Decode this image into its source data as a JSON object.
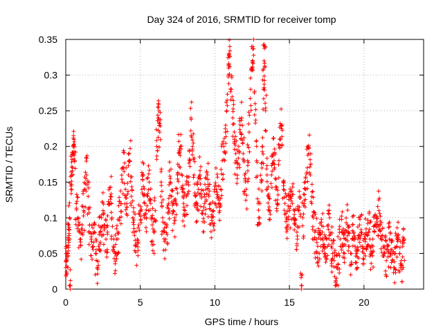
{
  "chart_data": {
    "type": "scatter",
    "title": "Day 324 of 2016, SRMTID for receiver tomp",
    "xlabel": "GPS time / hours",
    "ylabel": "SRMTID / TECUs",
    "xlim": [
      0,
      24
    ],
    "ylim": [
      0,
      0.35
    ],
    "xticks": [
      0,
      5,
      10,
      15,
      20
    ],
    "xtick_labels": [
      "0",
      "5",
      "10",
      "15",
      "20"
    ],
    "yticks": [
      0,
      0.05,
      0.1,
      0.15,
      0.2,
      0.25,
      0.3,
      0.35
    ],
    "ytick_labels": [
      "0",
      "0.05",
      "0.1",
      "0.15",
      "0.2",
      "0.25",
      "0.3",
      "0.35"
    ],
    "grid": true,
    "marker": "+",
    "color": "#ff0000",
    "series": [
      {
        "name": "SRMTID",
        "points": [
          [
            0.0,
            0.03
          ],
          [
            0.05,
            0.04
          ],
          [
            0.1,
            0.05
          ],
          [
            0.15,
            0.07
          ],
          [
            0.2,
            0.09
          ],
          [
            0.25,
            0.1
          ],
          [
            0.3,
            0.0
          ],
          [
            0.35,
            0.14
          ],
          [
            0.4,
            0.16
          ],
          [
            0.45,
            0.17
          ],
          [
            0.5,
            0.19
          ],
          [
            0.55,
            0.21
          ],
          [
            0.6,
            0.18
          ],
          [
            0.7,
            0.12
          ],
          [
            0.8,
            0.1
          ],
          [
            0.9,
            0.08
          ],
          [
            1.0,
            0.07
          ],
          [
            1.1,
            0.09
          ],
          [
            1.2,
            0.11
          ],
          [
            1.3,
            0.14
          ],
          [
            1.4,
            0.16
          ],
          [
            1.5,
            0.13
          ],
          [
            1.6,
            0.09
          ],
          [
            1.7,
            0.07
          ],
          [
            1.8,
            0.06
          ],
          [
            1.9,
            0.08
          ],
          [
            2.0,
            0.05
          ],
          [
            2.1,
            0.03
          ],
          [
            2.2,
            0.06
          ],
          [
            2.3,
            0.08
          ],
          [
            2.4,
            0.1
          ],
          [
            2.5,
            0.11
          ],
          [
            2.6,
            0.09
          ],
          [
            2.7,
            0.07
          ],
          [
            2.8,
            0.08
          ],
          [
            2.9,
            0.12
          ],
          [
            3.0,
            0.13
          ],
          [
            3.1,
            0.1
          ],
          [
            3.2,
            0.06
          ],
          [
            3.3,
            0.05
          ],
          [
            3.4,
            0.07
          ],
          [
            3.5,
            0.08
          ],
          [
            3.6,
            0.1
          ],
          [
            3.7,
            0.12
          ],
          [
            3.8,
            0.15
          ],
          [
            3.9,
            0.17
          ],
          [
            4.0,
            0.14
          ],
          [
            4.1,
            0.12
          ],
          [
            4.2,
            0.16
          ],
          [
            4.3,
            0.18
          ],
          [
            4.4,
            0.13
          ],
          [
            4.5,
            0.1
          ],
          [
            4.6,
            0.08
          ],
          [
            4.7,
            0.06
          ],
          [
            4.8,
            0.07
          ],
          [
            4.9,
            0.09
          ],
          [
            5.0,
            0.11
          ],
          [
            5.1,
            0.14
          ],
          [
            5.2,
            0.16
          ],
          [
            5.3,
            0.12
          ],
          [
            5.4,
            0.1
          ],
          [
            5.5,
            0.13
          ],
          [
            5.6,
            0.15
          ],
          [
            5.7,
            0.12
          ],
          [
            5.8,
            0.09
          ],
          [
            5.9,
            0.08
          ],
          [
            6.0,
            0.11
          ],
          [
            6.1,
            0.2
          ],
          [
            6.2,
            0.24
          ],
          [
            6.25,
            0.25
          ],
          [
            6.3,
            0.22
          ],
          [
            6.4,
            0.15
          ],
          [
            6.5,
            0.1
          ],
          [
            6.6,
            0.08
          ],
          [
            6.7,
            0.07
          ],
          [
            6.8,
            0.09
          ],
          [
            6.9,
            0.12
          ],
          [
            7.0,
            0.15
          ],
          [
            7.1,
            0.13
          ],
          [
            7.2,
            0.11
          ],
          [
            7.3,
            0.1
          ],
          [
            7.4,
            0.12
          ],
          [
            7.5,
            0.16
          ],
          [
            7.6,
            0.19
          ],
          [
            7.7,
            0.2
          ],
          [
            7.8,
            0.14
          ],
          [
            7.9,
            0.12
          ],
          [
            8.0,
            0.11
          ],
          [
            8.1,
            0.13
          ],
          [
            8.2,
            0.15
          ],
          [
            8.3,
            0.18
          ],
          [
            8.4,
            0.24
          ],
          [
            8.5,
            0.2
          ],
          [
            8.6,
            0.16
          ],
          [
            8.7,
            0.13
          ],
          [
            8.8,
            0.12
          ],
          [
            8.9,
            0.14
          ],
          [
            9.0,
            0.16
          ],
          [
            9.1,
            0.13
          ],
          [
            9.2,
            0.11
          ],
          [
            9.3,
            0.12
          ],
          [
            9.4,
            0.14
          ],
          [
            9.5,
            0.16
          ],
          [
            9.6,
            0.13
          ],
          [
            9.7,
            0.12
          ],
          [
            9.8,
            0.1
          ],
          [
            9.9,
            0.11
          ],
          [
            10.0,
            0.12
          ],
          [
            10.1,
            0.14
          ],
          [
            10.2,
            0.13
          ],
          [
            10.3,
            0.12
          ],
          [
            10.4,
            0.14
          ],
          [
            10.5,
            0.18
          ],
          [
            10.6,
            0.2
          ],
          [
            10.7,
            0.22
          ],
          [
            10.8,
            0.25
          ],
          [
            10.9,
            0.3
          ],
          [
            10.95,
            0.33
          ],
          [
            11.0,
            0.34
          ],
          [
            11.1,
            0.28
          ],
          [
            11.2,
            0.24
          ],
          [
            11.3,
            0.21
          ],
          [
            11.4,
            0.19
          ],
          [
            11.5,
            0.17
          ],
          [
            11.6,
            0.2
          ],
          [
            11.7,
            0.22
          ],
          [
            11.8,
            0.24
          ],
          [
            11.9,
            0.19
          ],
          [
            12.0,
            0.16
          ],
          [
            12.1,
            0.14
          ],
          [
            12.2,
            0.18
          ],
          [
            12.3,
            0.22
          ],
          [
            12.4,
            0.28
          ],
          [
            12.5,
            0.31
          ],
          [
            12.55,
            0.34
          ],
          [
            12.6,
            0.35
          ],
          [
            12.7,
            0.26
          ],
          [
            12.8,
            0.18
          ],
          [
            12.9,
            0.12
          ],
          [
            13.0,
            0.1
          ],
          [
            13.1,
            0.15
          ],
          [
            13.2,
            0.2
          ],
          [
            13.25,
            0.28
          ],
          [
            13.3,
            0.32
          ],
          [
            13.35,
            0.34
          ],
          [
            13.4,
            0.25
          ],
          [
            13.5,
            0.16
          ],
          [
            13.6,
            0.13
          ],
          [
            13.7,
            0.11
          ],
          [
            13.8,
            0.16
          ],
          [
            13.9,
            0.19
          ],
          [
            14.0,
            0.17
          ],
          [
            14.1,
            0.14
          ],
          [
            14.2,
            0.12
          ],
          [
            14.3,
            0.18
          ],
          [
            14.4,
            0.21
          ],
          [
            14.5,
            0.23
          ],
          [
            14.6,
            0.15
          ],
          [
            14.7,
            0.12
          ],
          [
            14.8,
            0.1
          ],
          [
            14.9,
            0.09
          ],
          [
            15.0,
            0.11
          ],
          [
            15.1,
            0.13
          ],
          [
            15.2,
            0.12
          ],
          [
            15.3,
            0.1
          ],
          [
            15.4,
            0.09
          ],
          [
            15.5,
            0.08
          ],
          [
            15.6,
            0.11
          ],
          [
            15.7,
            0.13
          ],
          [
            15.8,
            0.0
          ],
          [
            15.9,
            0.1
          ],
          [
            16.0,
            0.12
          ],
          [
            16.1,
            0.14
          ],
          [
            16.2,
            0.17
          ],
          [
            16.3,
            0.19
          ],
          [
            16.4,
            0.16
          ],
          [
            16.5,
            0.12
          ],
          [
            16.6,
            0.1
          ],
          [
            16.7,
            0.08
          ],
          [
            16.8,
            0.07
          ],
          [
            16.9,
            0.06
          ],
          [
            17.0,
            0.05
          ],
          [
            17.1,
            0.07
          ],
          [
            17.2,
            0.08
          ],
          [
            17.3,
            0.06
          ],
          [
            17.4,
            0.05
          ],
          [
            17.5,
            0.07
          ],
          [
            17.6,
            0.09
          ],
          [
            17.7,
            0.1
          ],
          [
            17.8,
            0.06
          ],
          [
            17.9,
            0.05
          ],
          [
            18.0,
            0.04
          ],
          [
            18.1,
            0.01
          ],
          [
            18.2,
            0.03
          ],
          [
            18.3,
            0.05
          ],
          [
            18.4,
            0.07
          ],
          [
            18.5,
            0.08
          ],
          [
            18.6,
            0.06
          ],
          [
            18.7,
            0.05
          ],
          [
            18.8,
            0.07
          ],
          [
            18.9,
            0.09
          ],
          [
            19.0,
            0.06
          ],
          [
            19.1,
            0.05
          ],
          [
            19.2,
            0.07
          ],
          [
            19.3,
            0.08
          ],
          [
            19.4,
            0.06
          ],
          [
            19.5,
            0.05
          ],
          [
            19.6,
            0.07
          ],
          [
            19.7,
            0.09
          ],
          [
            19.8,
            0.08
          ],
          [
            19.9,
            0.06
          ],
          [
            20.0,
            0.05
          ],
          [
            20.1,
            0.07
          ],
          [
            20.2,
            0.06
          ],
          [
            20.3,
            0.08
          ],
          [
            20.4,
            0.07
          ],
          [
            20.5,
            0.05
          ],
          [
            20.6,
            0.06
          ],
          [
            20.7,
            0.08
          ],
          [
            20.8,
            0.09
          ],
          [
            20.9,
            0.1
          ],
          [
            21.0,
            0.11
          ],
          [
            21.1,
            0.09
          ],
          [
            21.2,
            0.07
          ],
          [
            21.3,
            0.06
          ],
          [
            21.4,
            0.05
          ],
          [
            21.5,
            0.04
          ],
          [
            21.6,
            0.06
          ],
          [
            21.7,
            0.07
          ],
          [
            21.8,
            0.05
          ],
          [
            21.9,
            0.04
          ],
          [
            22.0,
            0.03
          ],
          [
            22.1,
            0.05
          ],
          [
            22.2,
            0.06
          ],
          [
            22.3,
            0.07
          ],
          [
            22.4,
            0.05
          ],
          [
            22.5,
            0.04
          ],
          [
            22.6,
            0.06
          ],
          [
            22.7,
            0.07
          ]
        ]
      }
    ]
  }
}
